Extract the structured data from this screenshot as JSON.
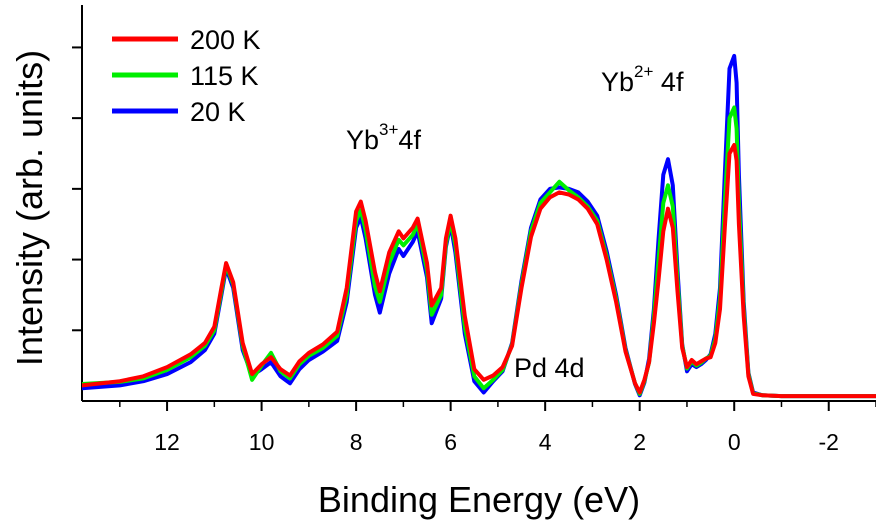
{
  "chart_data": {
    "type": "line",
    "title": "",
    "xlabel": "Binding Energy (eV)",
    "ylabel": "Intensity (arb. units)",
    "xlim": [
      13.8,
      -3.0
    ],
    "x_reversed": true,
    "ylim": [
      0,
      5.6
    ],
    "x_ticks": [
      12,
      10,
      8,
      6,
      4,
      2,
      0,
      -2
    ],
    "x_tick_labels": [
      "12",
      "10",
      "8",
      "6",
      "4",
      "2",
      "0",
      "-2"
    ],
    "y_ticks": [
      1,
      2,
      3,
      4,
      5
    ],
    "y_tick_labels_shown": false,
    "grid": false,
    "legend": {
      "placement": "top-left",
      "entries": [
        "200 K",
        "115 K",
        "20 K"
      ]
    },
    "annotations": [
      {
        "base": "Yb",
        "sup": "3+",
        "tail": "4f"
      },
      {
        "base": "Yb",
        "sup": "2+",
        "tail": " 4f"
      },
      {
        "text": "Pd 4d"
      }
    ],
    "series": [
      {
        "name": "200 K",
        "color": "#ff0000",
        "x": [
          13.8,
          13.0,
          12.5,
          12.0,
          11.5,
          11.2,
          11.0,
          10.85,
          10.75,
          10.6,
          10.4,
          10.2,
          10.0,
          9.8,
          9.6,
          9.4,
          9.2,
          9.0,
          8.7,
          8.4,
          8.2,
          8.0,
          7.9,
          7.8,
          7.6,
          7.5,
          7.3,
          7.1,
          7.0,
          6.8,
          6.7,
          6.5,
          6.4,
          6.2,
          6.1,
          6.0,
          5.9,
          5.7,
          5.5,
          5.3,
          5.1,
          4.9,
          4.7,
          4.5,
          4.3,
          4.1,
          3.9,
          3.7,
          3.5,
          3.3,
          3.1,
          2.9,
          2.7,
          2.5,
          2.3,
          2.1,
          2.0,
          1.9,
          1.8,
          1.7,
          1.6,
          1.5,
          1.4,
          1.3,
          1.2,
          1.1,
          1.0,
          0.9,
          0.8,
          0.7,
          0.6,
          0.5,
          0.4,
          0.3,
          0.2,
          0.1,
          0.0,
          -0.05,
          -0.1,
          -0.2,
          -0.3,
          -0.4,
          -0.6,
          -1.0,
          -2.0,
          -3.0
        ],
        "y": [
          0.22,
          0.28,
          0.35,
          0.48,
          0.66,
          0.82,
          1.05,
          1.6,
          1.95,
          1.68,
          0.82,
          0.38,
          0.52,
          0.62,
          0.45,
          0.36,
          0.56,
          0.68,
          0.8,
          0.98,
          1.6,
          2.68,
          2.82,
          2.55,
          1.82,
          1.55,
          2.1,
          2.4,
          2.3,
          2.45,
          2.58,
          1.95,
          1.35,
          1.6,
          2.3,
          2.62,
          2.3,
          1.2,
          0.45,
          0.3,
          0.36,
          0.48,
          0.78,
          1.6,
          2.32,
          2.72,
          2.88,
          2.95,
          2.92,
          2.85,
          2.72,
          2.5,
          2.0,
          1.4,
          0.7,
          0.25,
          0.12,
          0.3,
          0.55,
          1.1,
          1.72,
          2.4,
          2.72,
          2.45,
          1.55,
          0.75,
          0.48,
          0.58,
          0.52,
          0.56,
          0.6,
          0.62,
          0.82,
          1.3,
          2.45,
          3.5,
          3.62,
          3.4,
          2.5,
          1.2,
          0.35,
          0.1,
          0.08,
          0.07,
          0.07,
          0.07
        ]
      },
      {
        "name": "115 K",
        "color": "#00ee00",
        "x": [
          13.8,
          13.0,
          12.5,
          12.0,
          11.5,
          11.2,
          11.0,
          10.85,
          10.75,
          10.6,
          10.4,
          10.2,
          10.0,
          9.8,
          9.6,
          9.4,
          9.2,
          9.0,
          8.7,
          8.4,
          8.2,
          8.0,
          7.9,
          7.8,
          7.6,
          7.5,
          7.3,
          7.1,
          7.0,
          6.8,
          6.7,
          6.5,
          6.4,
          6.2,
          6.1,
          6.0,
          5.9,
          5.7,
          5.5,
          5.3,
          5.1,
          4.9,
          4.7,
          4.5,
          4.3,
          4.1,
          3.9,
          3.7,
          3.5,
          3.3,
          3.1,
          2.9,
          2.7,
          2.5,
          2.3,
          2.1,
          2.0,
          1.9,
          1.8,
          1.7,
          1.6,
          1.5,
          1.4,
          1.3,
          1.2,
          1.1,
          1.0,
          0.9,
          0.8,
          0.7,
          0.6,
          0.5,
          0.4,
          0.3,
          0.2,
          0.1,
          0.0,
          -0.05,
          -0.1,
          -0.2,
          -0.3,
          -0.4,
          -0.6,
          -1.0,
          -2.0,
          -3.0
        ],
        "y": [
          0.24,
          0.27,
          0.32,
          0.44,
          0.62,
          0.78,
          1.0,
          1.55,
          1.92,
          1.65,
          0.78,
          0.3,
          0.5,
          0.68,
          0.42,
          0.32,
          0.52,
          0.64,
          0.75,
          0.92,
          1.5,
          2.55,
          2.7,
          2.42,
          1.62,
          1.4,
          1.95,
          2.28,
          2.2,
          2.35,
          2.5,
          1.85,
          1.22,
          1.5,
          2.22,
          2.55,
          2.2,
          1.05,
          0.35,
          0.18,
          0.3,
          0.44,
          0.8,
          1.65,
          2.4,
          2.8,
          2.95,
          3.1,
          2.98,
          2.88,
          2.75,
          2.55,
          2.05,
          1.45,
          0.72,
          0.25,
          0.1,
          0.28,
          0.55,
          1.2,
          2.0,
          2.8,
          3.05,
          2.75,
          1.7,
          0.78,
          0.46,
          0.56,
          0.5,
          0.54,
          0.6,
          0.64,
          0.88,
          1.45,
          2.8,
          4.0,
          4.15,
          3.85,
          2.8,
          1.3,
          0.38,
          0.11,
          0.08,
          0.07,
          0.07,
          0.07
        ]
      },
      {
        "name": "20 K",
        "color": "#0000ff",
        "x": [
          13.8,
          13.0,
          12.5,
          12.0,
          11.5,
          11.2,
          11.0,
          10.85,
          10.75,
          10.6,
          10.4,
          10.2,
          10.0,
          9.8,
          9.6,
          9.4,
          9.2,
          9.0,
          8.7,
          8.4,
          8.2,
          8.0,
          7.9,
          7.8,
          7.6,
          7.5,
          7.3,
          7.1,
          7.0,
          6.8,
          6.7,
          6.5,
          6.4,
          6.2,
          6.1,
          6.0,
          5.9,
          5.7,
          5.5,
          5.3,
          5.1,
          4.9,
          4.7,
          4.5,
          4.3,
          4.1,
          3.9,
          3.7,
          3.5,
          3.3,
          3.1,
          2.9,
          2.7,
          2.5,
          2.3,
          2.1,
          2.0,
          1.9,
          1.8,
          1.7,
          1.6,
          1.5,
          1.4,
          1.3,
          1.2,
          1.1,
          1.0,
          0.9,
          0.8,
          0.7,
          0.6,
          0.5,
          0.4,
          0.3,
          0.2,
          0.1,
          0.0,
          -0.05,
          -0.1,
          -0.2,
          -0.3,
          -0.4,
          -0.6,
          -1.0,
          -2.0,
          -3.0
        ],
        "y": [
          0.18,
          0.22,
          0.28,
          0.38,
          0.55,
          0.72,
          0.95,
          1.5,
          1.88,
          1.6,
          0.72,
          0.36,
          0.45,
          0.55,
          0.35,
          0.25,
          0.45,
          0.58,
          0.7,
          0.85,
          1.4,
          2.45,
          2.6,
          2.3,
          1.5,
          1.25,
          1.8,
          2.15,
          2.05,
          2.25,
          2.4,
          1.75,
          1.1,
          1.45,
          2.18,
          2.5,
          2.1,
          0.95,
          0.28,
          0.12,
          0.28,
          0.42,
          0.82,
          1.7,
          2.45,
          2.85,
          3.0,
          3.02,
          3.0,
          2.95,
          2.82,
          2.62,
          2.12,
          1.5,
          0.75,
          0.24,
          0.08,
          0.26,
          0.6,
          1.3,
          2.3,
          3.2,
          3.42,
          3.05,
          1.85,
          0.8,
          0.42,
          0.52,
          0.48,
          0.52,
          0.58,
          0.66,
          0.95,
          1.6,
          3.2,
          4.7,
          4.88,
          4.5,
          3.2,
          1.4,
          0.4,
          0.12,
          0.08,
          0.07,
          0.07,
          0.07
        ]
      }
    ]
  }
}
